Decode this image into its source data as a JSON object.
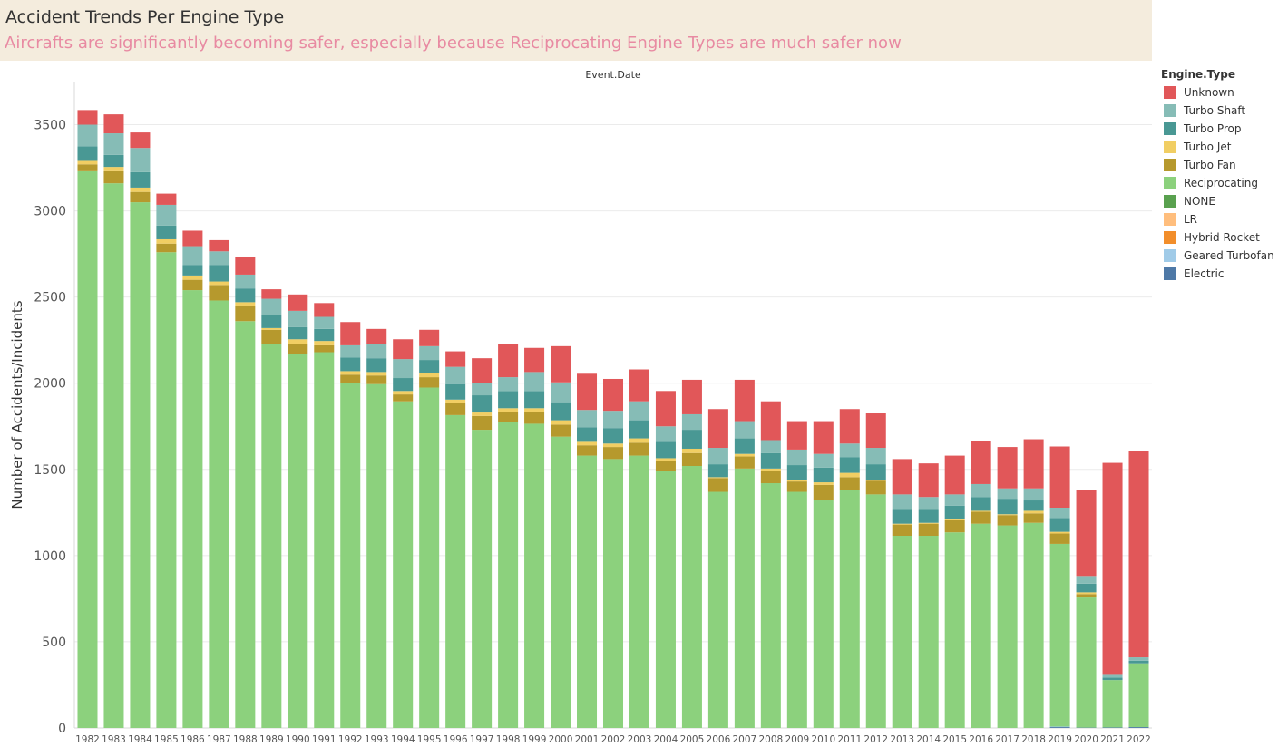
{
  "header": {
    "title": "Accident Trends Per Engine Type",
    "subtitle": "Aircrafts are significantly becoming safer, especially because Reciprocating Engine Types are much safer now"
  },
  "chart_data": {
    "type": "bar",
    "stacked": true,
    "title": "Accident Trends Per Engine Type",
    "subtitle": "Aircrafts are significantly becoming safer, especially because Reciprocating Engine Types are much safer now",
    "column_label": "Event.Date",
    "xlabel": "",
    "ylabel": "Number of Accidents/Incidents",
    "ylim": [
      0,
      3750
    ],
    "yticks": [
      0,
      500,
      1000,
      1500,
      2000,
      2500,
      3000,
      3500
    ],
    "grid": true,
    "legend_title": "Engine.Type",
    "legend_position": "right",
    "categories": [
      "1982",
      "1983",
      "1984",
      "1985",
      "1986",
      "1987",
      "1988",
      "1989",
      "1990",
      "1991",
      "1992",
      "1993",
      "1994",
      "1995",
      "1996",
      "1997",
      "1998",
      "1999",
      "2000",
      "2001",
      "2002",
      "2003",
      "2004",
      "2005",
      "2006",
      "2007",
      "2008",
      "2009",
      "2010",
      "2011",
      "2012",
      "2013",
      "2014",
      "2015",
      "2016",
      "2017",
      "2018",
      "2019",
      "2020",
      "2021",
      "2022"
    ],
    "series": [
      {
        "name": "Electric",
        "color": "#4e79a7",
        "values": [
          0,
          0,
          0,
          0,
          0,
          0,
          0,
          0,
          0,
          0,
          0,
          0,
          0,
          0,
          0,
          0,
          0,
          0,
          0,
          0,
          0,
          0,
          0,
          0,
          0,
          0,
          0,
          0,
          0,
          0,
          0,
          0,
          0,
          0,
          0,
          0,
          0,
          5,
          2,
          3,
          5
        ]
      },
      {
        "name": "Geared Turbofan",
        "color": "#a0cbe8",
        "values": [
          0,
          0,
          0,
          0,
          0,
          0,
          0,
          0,
          0,
          0,
          0,
          0,
          0,
          0,
          0,
          0,
          0,
          0,
          0,
          0,
          0,
          0,
          0,
          0,
          0,
          0,
          0,
          0,
          0,
          0,
          0,
          0,
          0,
          0,
          0,
          0,
          0,
          3,
          0,
          0,
          0
        ]
      },
      {
        "name": "Hybrid Rocket",
        "color": "#f28e2b",
        "values": [
          0,
          0,
          0,
          0,
          0,
          0,
          0,
          0,
          0,
          0,
          0,
          0,
          0,
          0,
          0,
          0,
          0,
          0,
          0,
          0,
          0,
          0,
          0,
          0,
          0,
          0,
          0,
          0,
          0,
          0,
          0,
          0,
          0,
          0,
          0,
          0,
          0,
          0,
          0,
          0,
          0
        ]
      },
      {
        "name": "LR",
        "color": "#ffbe7d",
        "values": [
          0,
          0,
          0,
          0,
          0,
          0,
          0,
          0,
          0,
          0,
          0,
          0,
          0,
          0,
          0,
          0,
          0,
          0,
          0,
          0,
          0,
          0,
          0,
          0,
          0,
          0,
          0,
          0,
          0,
          0,
          0,
          0,
          0,
          0,
          0,
          0,
          0,
          0,
          0,
          0,
          0
        ]
      },
      {
        "name": "NONE",
        "color": "#59a14f",
        "values": [
          0,
          0,
          0,
          0,
          0,
          0,
          0,
          0,
          0,
          0,
          0,
          0,
          0,
          0,
          0,
          0,
          0,
          0,
          0,
          0,
          0,
          0,
          0,
          0,
          0,
          0,
          0,
          0,
          0,
          0,
          0,
          0,
          0,
          0,
          0,
          0,
          0,
          0,
          0,
          0,
          0
        ]
      },
      {
        "name": "Reciprocating",
        "color": "#8cd17d",
        "values": [
          3230,
          3160,
          3050,
          2760,
          2540,
          2480,
          2360,
          2230,
          2170,
          2180,
          2000,
          1995,
          1895,
          1975,
          1815,
          1730,
          1775,
          1765,
          1690,
          1580,
          1560,
          1580,
          1490,
          1520,
          1370,
          1505,
          1420,
          1370,
          1320,
          1380,
          1355,
          1115,
          1115,
          1135,
          1185,
          1175,
          1190,
          1060,
          755,
          275,
          370
        ]
      },
      {
        "name": "Turbo Fan",
        "color": "#b6992d",
        "values": [
          40,
          70,
          60,
          50,
          60,
          90,
          90,
          80,
          60,
          40,
          50,
          50,
          40,
          60,
          70,
          80,
          60,
          70,
          70,
          60,
          70,
          75,
          60,
          75,
          80,
          70,
          70,
          60,
          90,
          75,
          80,
          65,
          70,
          70,
          70,
          60,
          55,
          60,
          20,
          0,
          0
        ]
      },
      {
        "name": "Turbo Jet",
        "color": "#f1ce63",
        "values": [
          20,
          25,
          25,
          25,
          25,
          20,
          20,
          10,
          25,
          25,
          20,
          20,
          20,
          25,
          20,
          20,
          20,
          20,
          25,
          20,
          20,
          25,
          15,
          25,
          5,
          15,
          15,
          10,
          15,
          25,
          5,
          5,
          5,
          5,
          5,
          5,
          15,
          10,
          10,
          0,
          0
        ]
      },
      {
        "name": "Turbo Prop",
        "color": "#499894",
        "values": [
          85,
          70,
          90,
          80,
          60,
          95,
          80,
          75,
          70,
          70,
          80,
          80,
          75,
          75,
          90,
          100,
          100,
          100,
          105,
          85,
          90,
          105,
          95,
          110,
          75,
          90,
          90,
          85,
          85,
          90,
          90,
          80,
          75,
          80,
          80,
          90,
          60,
          80,
          50,
          15,
          15
        ]
      },
      {
        "name": "Turbo Shaft",
        "color": "#86bcb6",
        "values": [
          125,
          125,
          140,
          120,
          110,
          80,
          80,
          95,
          95,
          70,
          70,
          80,
          110,
          80,
          100,
          70,
          80,
          110,
          115,
          100,
          100,
          110,
          90,
          90,
          95,
          100,
          75,
          90,
          80,
          80,
          95,
          90,
          75,
          65,
          75,
          60,
          70,
          60,
          45,
          15,
          20
        ]
      },
      {
        "name": "Unknown",
        "color": "#e15759",
        "values": [
          85,
          110,
          90,
          65,
          90,
          65,
          105,
          55,
          95,
          80,
          135,
          90,
          115,
          95,
          90,
          145,
          195,
          140,
          210,
          210,
          185,
          185,
          205,
          200,
          225,
          240,
          225,
          165,
          190,
          200,
          200,
          205,
          195,
          225,
          250,
          240,
          285,
          355,
          500,
          1230,
          1195
        ]
      }
    ]
  },
  "legend": {
    "title": "Engine.Type",
    "items": [
      {
        "label": "Unknown",
        "color": "#e15759"
      },
      {
        "label": "Turbo Shaft",
        "color": "#86bcb6"
      },
      {
        "label": "Turbo Prop",
        "color": "#499894"
      },
      {
        "label": "Turbo Jet",
        "color": "#f1ce63"
      },
      {
        "label": "Turbo Fan",
        "color": "#b6992d"
      },
      {
        "label": "Reciprocating",
        "color": "#8cd17d"
      },
      {
        "label": "NONE",
        "color": "#59a14f"
      },
      {
        "label": "LR",
        "color": "#ffbe7d"
      },
      {
        "label": "Hybrid Rocket",
        "color": "#f28e2b"
      },
      {
        "label": "Geared Turbofan",
        "color": "#a0cbe8"
      },
      {
        "label": "Electric",
        "color": "#4e79a7"
      }
    ]
  }
}
